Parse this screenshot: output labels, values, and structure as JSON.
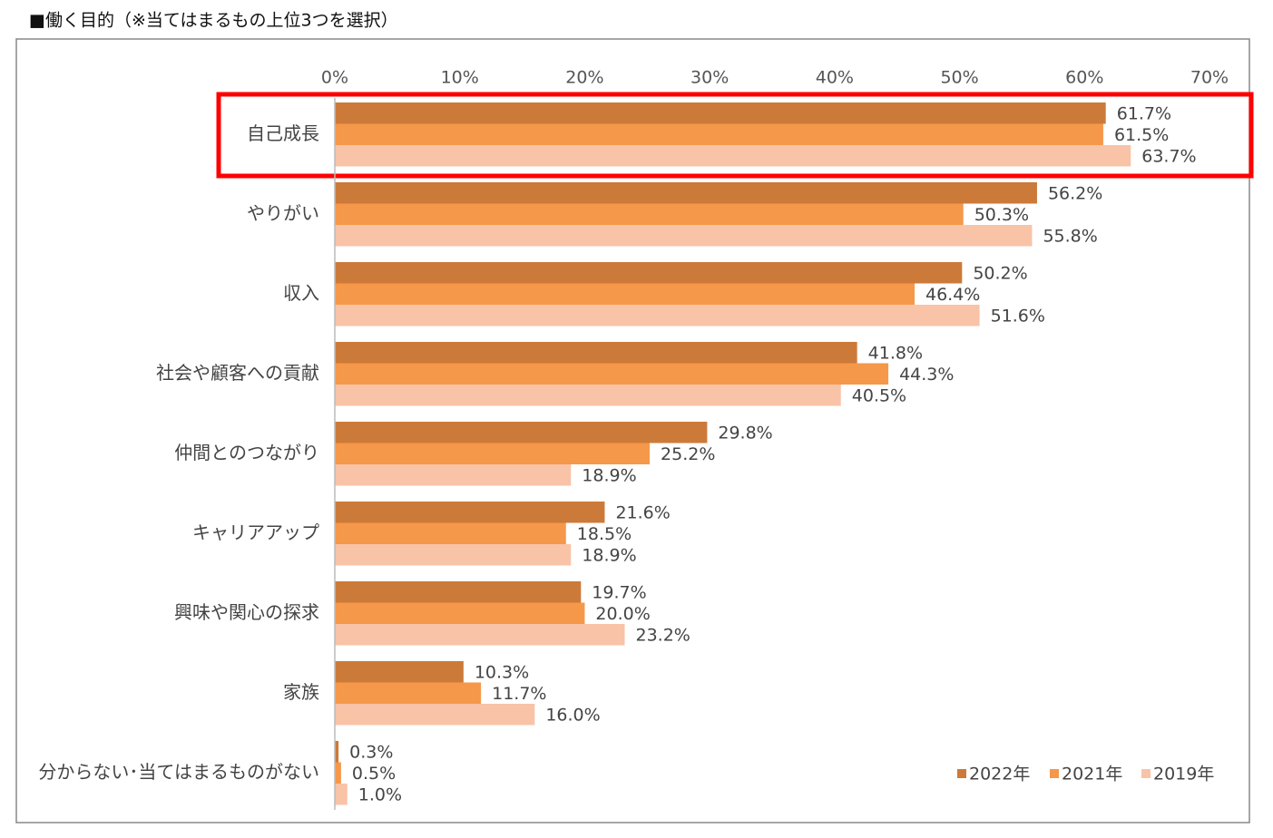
{
  "chart_data": {
    "type": "barh",
    "title": "■働く目的（※当てはまるもの上位3つを選択）",
    "categories": [
      "自己成長",
      "やりがい",
      "収入",
      "社会や顧客への貢献",
      "仲間とのつながり",
      "キャリアアップ",
      "興味や関心の探求",
      "家族",
      "分からない･当てはまるものがない"
    ],
    "series": [
      {
        "name": "2022年",
        "color": "#cc7a3a",
        "values": [
          61.7,
          56.2,
          50.2,
          41.8,
          29.8,
          21.6,
          19.7,
          10.3,
          0.3
        ],
        "value_labels": [
          "61.7%",
          "56.2%",
          "50.2%",
          "41.8%",
          "29.8%",
          "21.6%",
          "19.7%",
          "10.3%",
          "0.3%"
        ]
      },
      {
        "name": "2021年",
        "color": "#f5984a",
        "values": [
          61.5,
          50.3,
          46.4,
          44.3,
          25.2,
          18.5,
          20.0,
          11.7,
          0.5
        ],
        "value_labels": [
          "61.5%",
          "50.3%",
          "46.4%",
          "44.3%",
          "25.2%",
          "18.5%",
          "20.0%",
          "11.7%",
          "0.5%"
        ]
      },
      {
        "name": "2019年",
        "color": "#f8c3a7",
        "values": [
          63.7,
          55.8,
          51.6,
          40.5,
          18.9,
          18.9,
          23.2,
          16.0,
          1.0
        ],
        "value_labels": [
          "63.7%",
          "55.8%",
          "51.6%",
          "40.5%",
          "18.9%",
          "18.9%",
          "23.2%",
          "16.0%",
          "1.0%"
        ]
      }
    ],
    "xlim": [
      0,
      70
    ],
    "xticks": [
      {
        "value": 0,
        "label": "0%"
      },
      {
        "value": 10,
        "label": "10%"
      },
      {
        "value": 20,
        "label": "20%"
      },
      {
        "value": 30,
        "label": "30%"
      },
      {
        "value": 40,
        "label": "40%"
      },
      {
        "value": 50,
        "label": "50%"
      },
      {
        "value": 60,
        "label": "60%"
      },
      {
        "value": 70,
        "label": "70%"
      }
    ],
    "grid": false,
    "legend": "bottom-right"
  }
}
